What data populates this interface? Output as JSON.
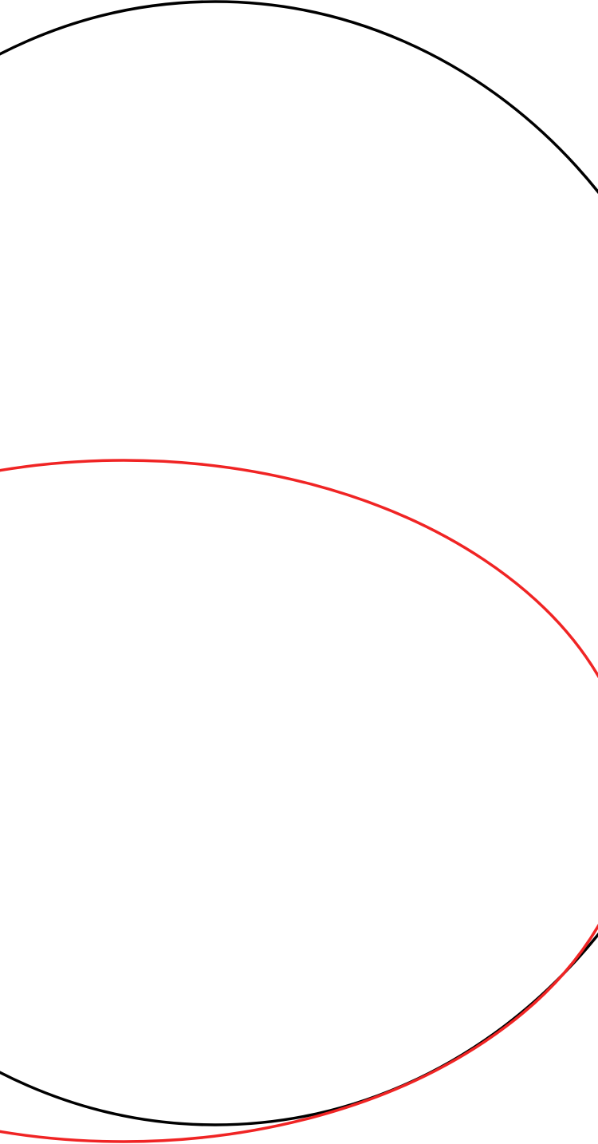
{
  "diagram": {
    "background": "#ffffff",
    "shapes": [
      {
        "name": "black-ellipse",
        "kind": "ellipse-outline",
        "stroke": "#000000"
      },
      {
        "name": "red-ellipse",
        "kind": "ellipse-outline",
        "stroke": "#f02424"
      }
    ]
  }
}
